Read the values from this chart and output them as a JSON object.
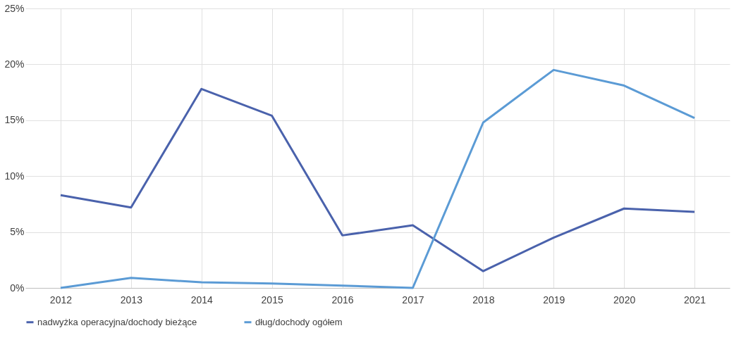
{
  "chart_data": {
    "type": "line",
    "categories": [
      "2012",
      "2013",
      "2014",
      "2015",
      "2016",
      "2017",
      "2018",
      "2019",
      "2020",
      "2021"
    ],
    "series": [
      {
        "name": "nadwyżka operacyjna/dochody bieżące",
        "color": "#4a62ac",
        "values": [
          8.3,
          7.2,
          17.8,
          15.4,
          4.7,
          5.6,
          1.5,
          4.5,
          7.1,
          6.8
        ]
      },
      {
        "name": "dług/dochody ogółem",
        "color": "#5b9bd5",
        "values": [
          0,
          0.9,
          0.5,
          0.4,
          0.2,
          0,
          14.8,
          19.5,
          18.1,
          15.2
        ]
      }
    ],
    "ylim": [
      0,
      25
    ],
    "yticks": [
      {
        "value": 0,
        "label": "0%"
      },
      {
        "value": 5,
        "label": "5%"
      },
      {
        "value": 10,
        "label": "10%"
      },
      {
        "value": 15,
        "label": "15%"
      },
      {
        "value": 20,
        "label": "20%"
      },
      {
        "value": 25,
        "label": "25%"
      }
    ],
    "grid": true,
    "legend": "bottom",
    "marker": "none",
    "line_style": "solid"
  }
}
